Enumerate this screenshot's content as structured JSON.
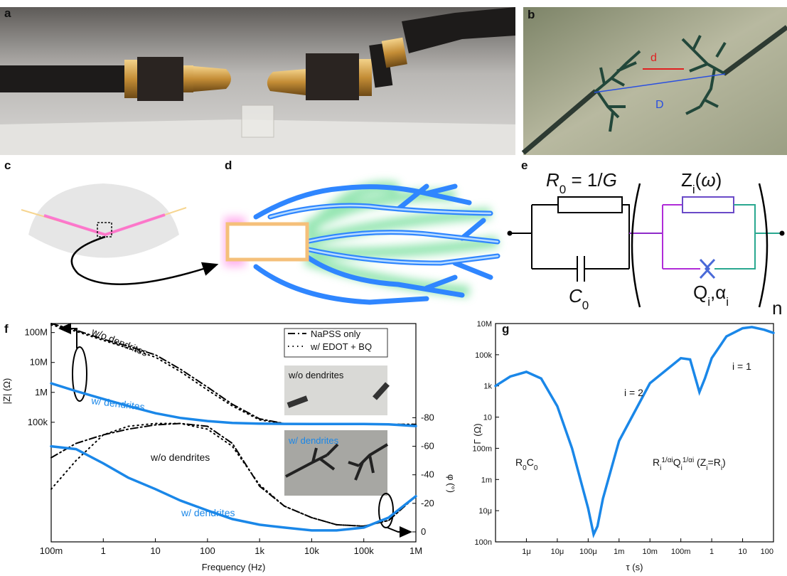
{
  "panel_labels": [
    "a",
    "b",
    "c",
    "d",
    "e",
    "f",
    "g"
  ],
  "photo_b": {
    "d": "d",
    "D": "D"
  },
  "circuit": {
    "r0": [
      "R",
      "0",
      " = 1/",
      "G"
    ],
    "zi": [
      "Z",
      "i",
      "(",
      "ω",
      ")"
    ],
    "c0": [
      "C",
      "0"
    ],
    "qi": [
      "Q",
      "i",
      ",α",
      "i"
    ],
    "n": "n"
  },
  "chart_data": [
    {
      "type": "line",
      "log_x": true,
      "log_y": true,
      "xlabel": "Frequency (Hz)",
      "ylabel": "|Z| (Ω)",
      "y2label": "φ (°)",
      "x": [
        0.1,
        0.3,
        1,
        3,
        10,
        30,
        100,
        300,
        1000,
        3000,
        10000,
        30000,
        100000,
        300000,
        1000000
      ],
      "xlim": [
        0.1,
        1000000
      ],
      "xticks": [
        {
          "value": 0.1,
          "label": "100m"
        },
        1,
        10,
        100,
        {
          "value": 1000,
          "label": "1k"
        },
        {
          "value": 10000,
          "label": "10k"
        },
        {
          "value": 100000,
          "label": "100k"
        },
        {
          "value": 1000000,
          "label": "1M"
        }
      ],
      "ylim": [
        10,
        200000000
      ],
      "yticks": [
        {
          "value": 100000,
          "label": "100k"
        },
        {
          "value": 1000000,
          "label": "1M"
        },
        {
          "value": 10000000,
          "label": "10M"
        },
        {
          "value": 100000000,
          "label": "100M"
        }
      ],
      "y2lim": [
        7,
        -146
      ],
      "y2ticks": [
        0,
        -20,
        -40,
        -60,
        -80
      ],
      "legend": "upper right",
      "series": [
        {
          "name": "NaPSS only",
          "color": "#000000",
          "dash": "dashdot",
          "axis": "y",
          "values": [
            200000000,
            120000000,
            60000000,
            35000000,
            18000000,
            6000000,
            1500000,
            400000,
            130000,
            90000,
            85000,
            85000,
            85000,
            85000,
            85000
          ]
        },
        {
          "name": "w/ EDOT + BQ",
          "color": "#000000",
          "dash": "dotted",
          "axis": "y",
          "values": [
            180000000,
            110000000,
            55000000,
            30000000,
            15000000,
            5000000,
            1200000,
            350000,
            120000,
            90000,
            85000,
            85000,
            85000,
            85000,
            85000
          ]
        },
        {
          "color": "#1a87e8",
          "dash": "solid",
          "axis": "y",
          "values": [
            2000000,
            1100000,
            600000,
            350000,
            200000,
            140000,
            110000,
            95000,
            90000,
            88000,
            87000,
            87000,
            87000,
            85000,
            75000
          ]
        },
        {
          "color": "#000000",
          "dash": "dashdot",
          "axis": "y2",
          "values": [
            -52,
            -62,
            -68,
            -72,
            -75,
            -76,
            -74,
            -62,
            -32,
            -18,
            -10,
            -5,
            -4,
            -8,
            -25
          ]
        },
        {
          "color": "#000000",
          "dash": "dotted",
          "axis": "y2",
          "values": [
            -30,
            -50,
            -68,
            -74,
            -76,
            -76,
            -72,
            -60,
            -33,
            -18,
            -10,
            -5,
            -4,
            -8,
            -25
          ]
        },
        {
          "color": "#1a87e8",
          "dash": "solid",
          "axis": "y2",
          "values": [
            -60,
            -58,
            -48,
            -38,
            -30,
            -22,
            -15,
            -9,
            -5,
            -3,
            -1,
            -1,
            -3,
            -10,
            -25
          ]
        }
      ],
      "annotations": [
        "w/o dendrites",
        "w/ dendrites",
        "w/o dendrites",
        "w/ dendrites"
      ],
      "inset_labels": [
        "w/o dendrites",
        "w/ dendrites"
      ]
    },
    {
      "type": "line",
      "log_x": true,
      "log_y": true,
      "xlabel": "τ (s)",
      "ylabel": "Γ (Ω)",
      "x": [
        1e-07,
        3e-07,
        1e-06,
        3e-06,
        1e-05,
        3e-05,
        0.0001,
        0.00015,
        0.0002,
        0.0003,
        0.001,
        0.01,
        0.1,
        0.2,
        0.4,
        0.6,
        1,
        3,
        10,
        20,
        50,
        100
      ],
      "xlim": [
        1e-07,
        100
      ],
      "xticks": [
        {
          "value": 1e-06,
          "label": "1μ"
        },
        {
          "value": 1e-05,
          "label": "10μ"
        },
        {
          "value": 0.0001,
          "label": "100μ"
        },
        {
          "value": 0.001,
          "label": "1m"
        },
        {
          "value": 0.01,
          "label": "10m"
        },
        {
          "value": 0.1,
          "label": "100m"
        },
        1,
        10,
        100
      ],
      "ylim": [
        1e-07,
        10000000
      ],
      "yticks": [
        {
          "value": 1e-07,
          "label": "100n"
        },
        {
          "value": 1e-05,
          "label": "10μ"
        },
        {
          "value": 0.001,
          "label": "1m"
        },
        {
          "value": 0.1,
          "label": "100m"
        },
        10,
        {
          "value": 1000,
          "label": "1k"
        },
        {
          "value": 100000,
          "label": "100k"
        },
        {
          "value": 10000000,
          "label": "10M"
        }
      ],
      "series": [
        {
          "color": "#1a87e8",
          "values": [
            1000,
            4000,
            8000,
            3000,
            50,
            0.1,
            1.4e-05,
            3e-07,
            1e-06,
            6e-05,
            0.3,
            1500,
            60000,
            50000,
            400,
            3000,
            60000,
            1500000,
            5000000,
            6000000,
            4000000,
            2500000
          ]
        }
      ],
      "annotations": [
        "i = 1",
        "i = 2"
      ],
      "r0c0": [
        "R",
        "0",
        "C",
        "0"
      ],
      "ri": [
        "R",
        "i",
        "1/αi",
        "Q",
        "i",
        "1/αi",
        " (Z",
        "i",
        "=R",
        "i",
        ")"
      ]
    }
  ]
}
